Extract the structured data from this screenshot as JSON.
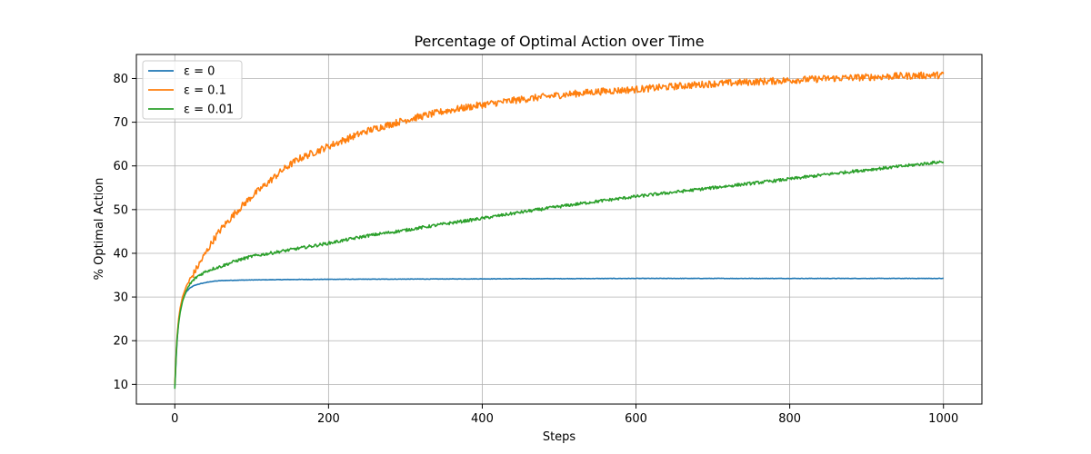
{
  "chart_data": {
    "type": "line",
    "title": "Percentage of Optimal Action over Time",
    "xlabel": "Steps",
    "ylabel": "% Optimal Action",
    "xlim": [
      -50,
      1050
    ],
    "ylim": [
      5.5,
      85.5
    ],
    "xticks": [
      0,
      200,
      400,
      600,
      800,
      1000
    ],
    "yticks": [
      10,
      20,
      30,
      40,
      50,
      60,
      70,
      80
    ],
    "grid": true,
    "legend_position": "top-left",
    "series": [
      {
        "name": "ε = 0",
        "color": "#1f77b4",
        "noise": 0.05,
        "x": [
          0,
          1,
          2,
          3,
          4,
          5,
          7,
          10,
          15,
          20,
          25,
          30,
          40,
          50,
          60,
          80,
          100,
          150,
          200,
          300,
          400,
          500,
          600,
          700,
          800,
          900,
          1000
        ],
        "y": [
          9.5,
          13,
          17,
          20,
          22.5,
          24.5,
          27,
          29.5,
          31.2,
          32.1,
          32.6,
          32.9,
          33.3,
          33.6,
          33.75,
          33.85,
          33.9,
          34.0,
          34.05,
          34.1,
          34.15,
          34.2,
          34.25,
          34.25,
          34.25,
          34.25,
          34.25
        ]
      },
      {
        "name": "ε = 0.1",
        "color": "#ff7f0e",
        "noise": 0.8,
        "x": [
          0,
          1,
          2,
          3,
          5,
          7,
          10,
          15,
          20,
          25,
          30,
          40,
          50,
          60,
          70,
          80,
          100,
          120,
          140,
          160,
          180,
          200,
          250,
          300,
          350,
          400,
          450,
          500,
          550,
          600,
          650,
          700,
          750,
          800,
          850,
          900,
          950,
          1000
        ],
        "y": [
          10,
          14,
          18,
          21,
          25,
          27.5,
          30,
          32.5,
          34,
          35.5,
          37,
          40,
          43,
          45.5,
          47.5,
          49.5,
          53,
          56,
          59,
          61.5,
          63,
          64.5,
          68,
          70.5,
          72.5,
          74,
          75.2,
          76.2,
          77,
          77.5,
          78.2,
          78.8,
          79.2,
          79.6,
          80,
          80.3,
          80.6,
          80.8
        ]
      },
      {
        "name": "ε = 0.01",
        "color": "#2ca02c",
        "noise": 0.35,
        "x": [
          0,
          1,
          2,
          3,
          5,
          7,
          10,
          15,
          20,
          25,
          30,
          40,
          50,
          60,
          80,
          100,
          150,
          200,
          250,
          300,
          350,
          400,
          450,
          500,
          550,
          600,
          650,
          700,
          750,
          800,
          850,
          900,
          950,
          1000
        ],
        "y": [
          9,
          13.5,
          17.5,
          20.5,
          24,
          26.5,
          29,
          31.5,
          33,
          34,
          34.8,
          35.8,
          36.5,
          37,
          38.3,
          39.3,
          40.8,
          42.3,
          44,
          45.3,
          46.7,
          48,
          49.4,
          50.7,
          51.9,
          53,
          54,
          55,
          56,
          57,
          58.1,
          59.1,
          60,
          61
        ]
      }
    ]
  }
}
